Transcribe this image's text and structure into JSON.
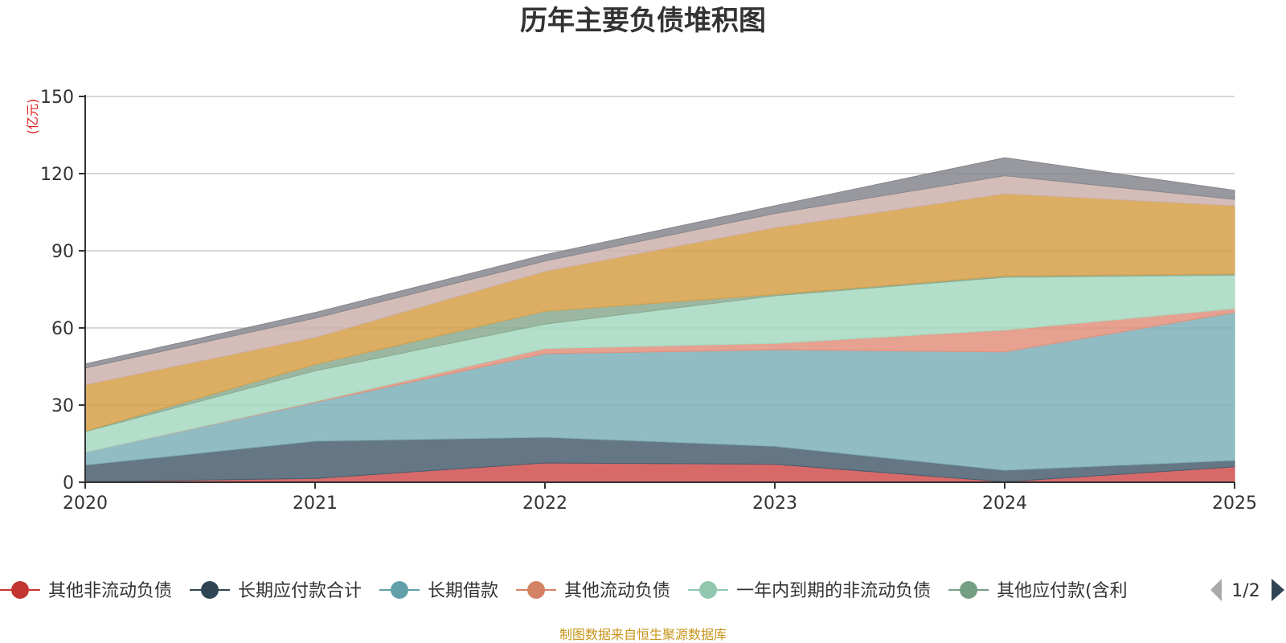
{
  "chart_data": {
    "type": "area",
    "stacked": true,
    "title": "历年主要负债堆积图",
    "unit_label": "(亿元)",
    "x": [
      "2020",
      "2021",
      "2022",
      "2023",
      "2024",
      "2025"
    ],
    "ylim": [
      0,
      150
    ],
    "yticks": [
      0,
      30,
      60,
      90,
      120,
      150
    ],
    "grid": true,
    "legend_position": "bottom",
    "series": [
      {
        "name": "其他非流动负债",
        "color": "#d0504f",
        "values": [
          0.2,
          1.5,
          7.5,
          7.0,
          0.2,
          6.0
        ]
      },
      {
        "name": "长期应付款合计",
        "color": "#4a5f70",
        "values": [
          6.5,
          14.5,
          10.0,
          7.0,
          4.5,
          2.5
        ]
      },
      {
        "name": "长期借款",
        "color": "#7fb0ba",
        "values": [
          5.0,
          15.0,
          32.5,
          37.5,
          46.0,
          57.5
        ]
      },
      {
        "name": "其他流动负债",
        "color": "#e2917c",
        "values": [
          0.0,
          0.3,
          2.0,
          2.5,
          8.5,
          1.5
        ]
      },
      {
        "name": "一年内到期的非流动负债",
        "color": "#a6d8c0",
        "values": [
          8.0,
          12.0,
          9.5,
          18.5,
          20.5,
          13.0
        ]
      },
      {
        "name": "其他应付款(含利",
        "color": "#8aaa90",
        "values": [
          0.2,
          2.5,
          5.0,
          0.5,
          0.5,
          0.5
        ]
      },
      {
        "name": "",
        "color": "#d6a048",
        "values": [
          18.0,
          10.5,
          15.5,
          26.0,
          32.0,
          26.5
        ]
      },
      {
        "name": "",
        "color": "#cdb1ad",
        "values": [
          6.5,
          7.5,
          4.0,
          5.5,
          7.0,
          2.5
        ]
      },
      {
        "name": "",
        "color": "#86878d",
        "values": [
          1.6,
          2.2,
          2.5,
          3.0,
          7.0,
          3.5
        ]
      }
    ]
  },
  "legend": {
    "page_indicator": "1/2"
  },
  "footer": {
    "source": "制图数据来自恒生聚源数据库"
  }
}
